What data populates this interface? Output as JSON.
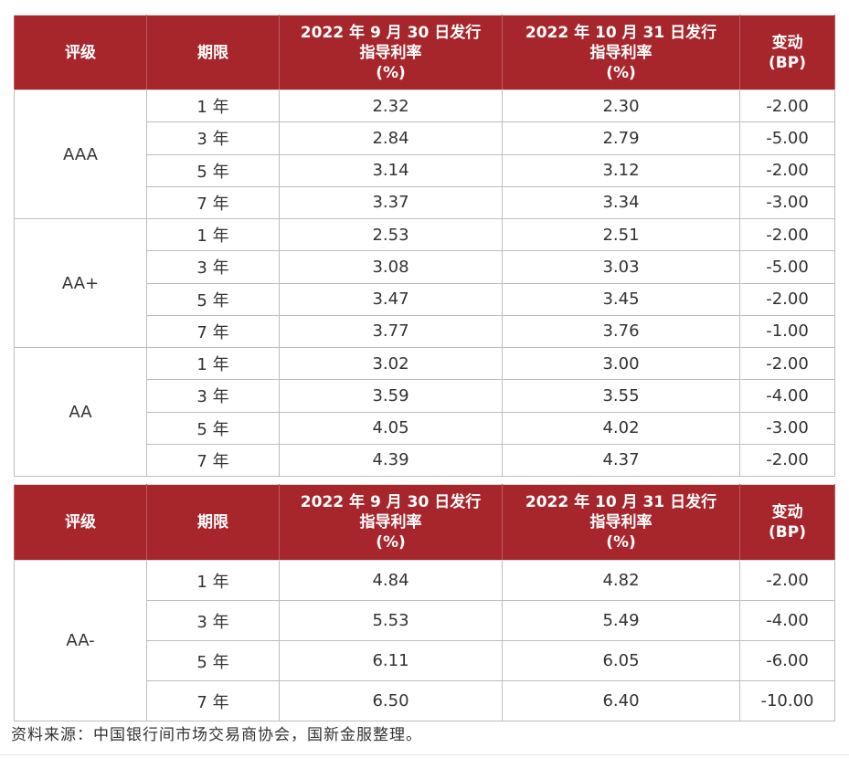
{
  "headers": {
    "rating": "评级",
    "tenor": "期限",
    "sep_line1": "2022 年 9 月 30 日发行",
    "sep_line2": "指导利率",
    "sep_line3": "(%)",
    "oct_line1": "2022 年 10 月 31 日发行",
    "oct_line2": "指导利率",
    "oct_line3": "(%)",
    "change_line1": "变动",
    "change_line2": "(BP)"
  },
  "table1": {
    "groups": [
      {
        "rating": "AAA",
        "rows": [
          {
            "tenor": "1 年",
            "sep": "2.32",
            "oct": "2.30",
            "change": "-2.00"
          },
          {
            "tenor": "3 年",
            "sep": "2.84",
            "oct": "2.79",
            "change": "-5.00"
          },
          {
            "tenor": "5 年",
            "sep": "3.14",
            "oct": "3.12",
            "change": "-2.00"
          },
          {
            "tenor": "7 年",
            "sep": "3.37",
            "oct": "3.34",
            "change": "-3.00"
          }
        ]
      },
      {
        "rating": "AA+",
        "rows": [
          {
            "tenor": "1 年",
            "sep": "2.53",
            "oct": "2.51",
            "change": "-2.00"
          },
          {
            "tenor": "3 年",
            "sep": "3.08",
            "oct": "3.03",
            "change": "-5.00"
          },
          {
            "tenor": "5 年",
            "sep": "3.47",
            "oct": "3.45",
            "change": "-2.00"
          },
          {
            "tenor": "7 年",
            "sep": "3.77",
            "oct": "3.76",
            "change": "-1.00"
          }
        ]
      },
      {
        "rating": "AA",
        "rows": [
          {
            "tenor": "1 年",
            "sep": "3.02",
            "oct": "3.00",
            "change": "-2.00"
          },
          {
            "tenor": "3 年",
            "sep": "3.59",
            "oct": "3.55",
            "change": "-4.00"
          },
          {
            "tenor": "5 年",
            "sep": "4.05",
            "oct": "4.02",
            "change": "-3.00"
          },
          {
            "tenor": "7 年",
            "sep": "4.39",
            "oct": "4.37",
            "change": "-2.00"
          }
        ]
      }
    ]
  },
  "table2": {
    "groups": [
      {
        "rating": "AA-",
        "rows": [
          {
            "tenor": "1 年",
            "sep": "4.84",
            "oct": "4.82",
            "change": "-2.00"
          },
          {
            "tenor": "3 年",
            "sep": "5.53",
            "oct": "5.49",
            "change": "-4.00"
          },
          {
            "tenor": "5 年",
            "sep": "6.11",
            "oct": "6.05",
            "change": "-6.00"
          },
          {
            "tenor": "7 年",
            "sep": "6.50",
            "oct": "6.40",
            "change": "-10.00"
          }
        ]
      }
    ]
  },
  "source": "资料来源：中国银行间市场交易商协会，国新金服整理。",
  "colors": {
    "header_bg": "#a6262c",
    "header_text": "#ffffff",
    "border": "#bdbdbd"
  }
}
